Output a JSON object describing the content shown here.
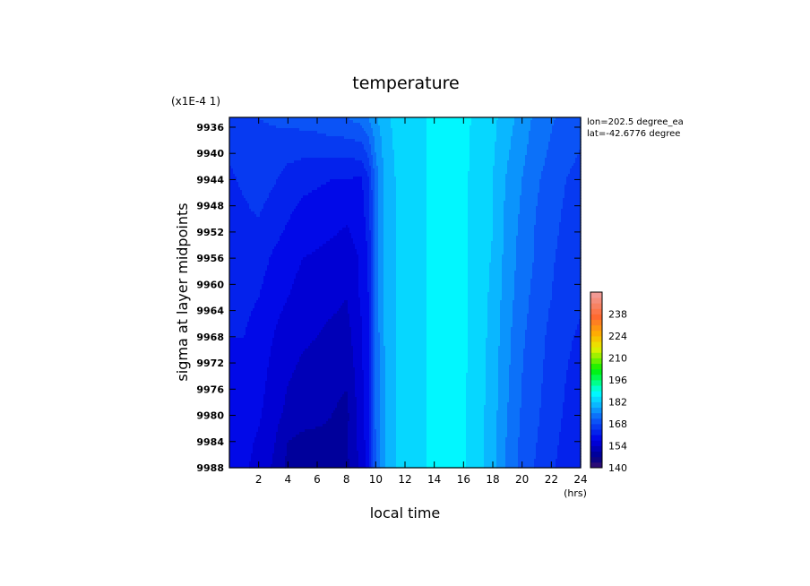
{
  "chart_data": {
    "type": "heatmap",
    "title": "temperature",
    "ylabel_scale": "(x1E-4 1)",
    "xlabel": "local time",
    "ylabel": "sigma at layer midpoints",
    "x_unit": "(hrs)",
    "x_ticks": [
      2,
      4,
      6,
      8,
      10,
      12,
      14,
      16,
      18,
      20,
      22,
      24
    ],
    "xlim": [
      0,
      24
    ],
    "y_ticks": [
      9936,
      9940,
      9944,
      9948,
      9952,
      9956,
      9960,
      9964,
      9968,
      9972,
      9976,
      9980,
      9984,
      9988
    ],
    "ylim": [
      9934.5,
      9988
    ],
    "y_reversed": true,
    "location": [
      "lon=202.5 degree_ea",
      "lat=-42.6776 degree"
    ],
    "colorbar": {
      "ticks": [
        140,
        154,
        168,
        182,
        196,
        210,
        224,
        238
      ],
      "range": [
        140,
        252
      ],
      "step": 3.5
    },
    "x": [
      0,
      1,
      2,
      3,
      4,
      5,
      6,
      7,
      8,
      9,
      9.5,
      10,
      10.5,
      11,
      11.5,
      12,
      13,
      14,
      15,
      16,
      17,
      18,
      19,
      20,
      21,
      22,
      23,
      24
    ],
    "y": [
      9934.5,
      9944,
      9952,
      9956,
      9962,
      9968,
      9980,
      9984,
      9988
    ],
    "values": [
      [
        166,
        167,
        168,
        168.5,
        169,
        169.5,
        170,
        171,
        171.5,
        173,
        175,
        178,
        180,
        182,
        183,
        184,
        185,
        186,
        186,
        186,
        185,
        183,
        180,
        177,
        174,
        172,
        170,
        169
      ],
      [
        164,
        165,
        166,
        165,
        163,
        162,
        161.5,
        161,
        160.8,
        160.5,
        164,
        173,
        178,
        181,
        182.5,
        184,
        185,
        186,
        186,
        186,
        184.5,
        182,
        178,
        175,
        172,
        170,
        168,
        167
      ],
      [
        163,
        163.5,
        164,
        162,
        160.5,
        159,
        158.5,
        158,
        157,
        159,
        162,
        173,
        178,
        181,
        182.5,
        184,
        185,
        186,
        186,
        186,
        184.5,
        182,
        177,
        174,
        171,
        169,
        167,
        166
      ],
      [
        162.5,
        163,
        162.5,
        160.5,
        159,
        157.5,
        157,
        156,
        155.5,
        158,
        161.5,
        173,
        178,
        181,
        182.5,
        184,
        185,
        186,
        186,
        186,
        184.5,
        181.5,
        177,
        173.5,
        171,
        168.5,
        166.5,
        165.5
      ],
      [
        162,
        162,
        161,
        159,
        157.5,
        156,
        155.5,
        155,
        154,
        158,
        161,
        173,
        178,
        181,
        182.5,
        184,
        185,
        186,
        186,
        186,
        184,
        181,
        176.5,
        173,
        170,
        168,
        166,
        165
      ],
      [
        161,
        161,
        159.5,
        157.5,
        155.5,
        154.5,
        154,
        153,
        152.5,
        157,
        160.5,
        172.5,
        178,
        181,
        182.5,
        184,
        185,
        186,
        186,
        186,
        184,
        180.5,
        176,
        172,
        169.5,
        167,
        165,
        164
      ],
      [
        160,
        159.5,
        158,
        155.5,
        153,
        152,
        151.5,
        150.5,
        149.5,
        156,
        160,
        172,
        177.5,
        180.5,
        182.5,
        184,
        185,
        186,
        186,
        186,
        183.5,
        180,
        175,
        171,
        168.5,
        166,
        164,
        163
      ],
      [
        159.5,
        158.5,
        157,
        154.5,
        150.5,
        149.5,
        149.3,
        149.5,
        150,
        155.5,
        159.5,
        172,
        177.5,
        180.5,
        182.5,
        184,
        185,
        186,
        186,
        186,
        183.5,
        179.5,
        174.5,
        170.5,
        168,
        165.5,
        163.5,
        162.5
      ],
      [
        159,
        158,
        156.5,
        153.5,
        149.5,
        149,
        149,
        149.2,
        149.6,
        155,
        159,
        172,
        177.5,
        180.5,
        182.5,
        184,
        185,
        186,
        186,
        186,
        183.5,
        179.5,
        174.5,
        170.5,
        167.5,
        165,
        163,
        162
      ]
    ]
  },
  "colors": {
    "palette_stops": [
      [
        0.0,
        "#3a1070"
      ],
      [
        0.06,
        "#00008a"
      ],
      [
        0.16,
        "#0000e6"
      ],
      [
        0.28,
        "#0c5ef8"
      ],
      [
        0.36,
        "#0ab8ff"
      ],
      [
        0.43,
        "#00ffff"
      ],
      [
        0.5,
        "#00ff6a"
      ],
      [
        0.56,
        "#00f000"
      ],
      [
        0.62,
        "#7cf000"
      ],
      [
        0.68,
        "#e6f000"
      ],
      [
        0.76,
        "#ffb000"
      ],
      [
        0.86,
        "#ff6a30"
      ],
      [
        1.0,
        "#f0a0a0"
      ]
    ]
  }
}
